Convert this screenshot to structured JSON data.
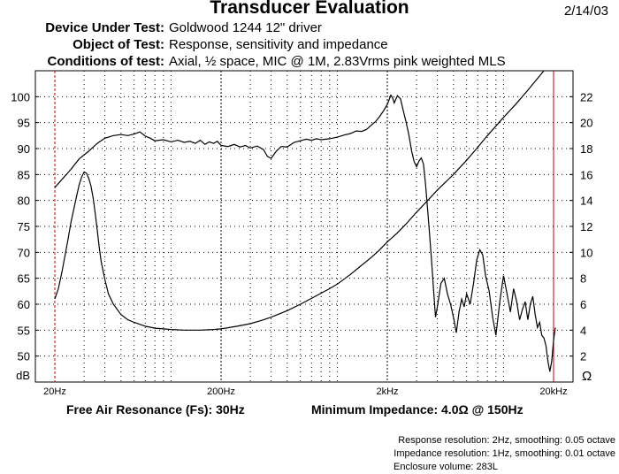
{
  "header": {
    "title": "Transducer Evaluation",
    "date": "2/14/03",
    "rows": [
      {
        "label": "Device Under Test:",
        "value": "Goldwood 1244 12\" driver"
      },
      {
        "label": "Object of Test:",
        "value": "Response, sensitivity and impedance"
      },
      {
        "label": "Conditions of test:",
        "value": "Axial, ½ space, MIC @ 1M, 2.83Vrms pink weighted MLS"
      }
    ]
  },
  "stats": {
    "fs": "Free Air Resonance (Fs): 30Hz",
    "min_impedance": "Minimum Impedance: 4.0Ω @ 150Hz"
  },
  "notes": {
    "response_resolution": "Response resolution: 2Hz, smoothing: 0.05 octave",
    "impedance_resolution": "Impedance resolution: 1Hz, smoothing: 0.01 octave",
    "enclosure": "Enclosure volume: 283L"
  },
  "chart_data": {
    "type": "line",
    "x_scale": "log",
    "xlim": [
      20,
      22000
    ],
    "x_ticks": [
      {
        "value": 20,
        "label": "20Hz"
      },
      {
        "value": 200,
        "label": "200Hz"
      },
      {
        "value": 2000,
        "label": "2kHz"
      },
      {
        "value": 20000,
        "label": "20kHz"
      }
    ],
    "ylim_left": [
      45,
      105
    ],
    "y_ticks_left": [
      50,
      55,
      60,
      65,
      70,
      75,
      80,
      85,
      90,
      95,
      100
    ],
    "ylabel_left": "dB",
    "ylim_right": [
      0,
      24
    ],
    "y_ticks_right": [
      2,
      4,
      6,
      8,
      10,
      12,
      14,
      16,
      18,
      20,
      22
    ],
    "ylabel_right": "Ω",
    "grid": "dotted",
    "markers_hz": [
      20,
      20000
    ],
    "series": [
      {
        "axis": "left",
        "values": [
          [
            20,
            82.5
          ],
          [
            22,
            84
          ],
          [
            25,
            86
          ],
          [
            28,
            88
          ],
          [
            32,
            89.5
          ],
          [
            36,
            91
          ],
          [
            40,
            92
          ],
          [
            45,
            92.5
          ],
          [
            50,
            92.7
          ],
          [
            55,
            92.5
          ],
          [
            60,
            92.8
          ],
          [
            65,
            93.2
          ],
          [
            70,
            92.4
          ],
          [
            75,
            92
          ],
          [
            80,
            91.5
          ],
          [
            90,
            91.7
          ],
          [
            100,
            91.3
          ],
          [
            110,
            91.6
          ],
          [
            120,
            91.2
          ],
          [
            130,
            91.4
          ],
          [
            140,
            91
          ],
          [
            150,
            91.6
          ],
          [
            160,
            90.8
          ],
          [
            170,
            91.3
          ],
          [
            180,
            91
          ],
          [
            190,
            91.4
          ],
          [
            200,
            90.6
          ],
          [
            220,
            90.4
          ],
          [
            240,
            90.8
          ],
          [
            260,
            90.3
          ],
          [
            280,
            90.6
          ],
          [
            300,
            90.1
          ],
          [
            330,
            90.5
          ],
          [
            360,
            89.8
          ],
          [
            380,
            88.5
          ],
          [
            400,
            88.1
          ],
          [
            430,
            89.5
          ],
          [
            460,
            90.4
          ],
          [
            500,
            90.3
          ],
          [
            550,
            91.2
          ],
          [
            600,
            91.5
          ],
          [
            650,
            91.8
          ],
          [
            700,
            91.6
          ],
          [
            750,
            91.9
          ],
          [
            800,
            91.7
          ],
          [
            900,
            91.9
          ],
          [
            1000,
            92.2
          ],
          [
            1100,
            92.6
          ],
          [
            1200,
            92.9
          ],
          [
            1300,
            93.4
          ],
          [
            1400,
            93.3
          ],
          [
            1500,
            93.7
          ],
          [
            1600,
            94.5
          ],
          [
            1700,
            95.2
          ],
          [
            1800,
            96.2
          ],
          [
            1900,
            97.3
          ],
          [
            2000,
            98.5
          ],
          [
            2100,
            100.3
          ],
          [
            2150,
            99.8
          ],
          [
            2200,
            98.8
          ],
          [
            2300,
            100.2
          ],
          [
            2400,
            99.6
          ],
          [
            2500,
            97.2
          ],
          [
            2600,
            95
          ],
          [
            2700,
            92.5
          ],
          [
            2800,
            89.5
          ],
          [
            2900,
            87.5
          ],
          [
            3000,
            86.5
          ],
          [
            3100,
            87.6
          ],
          [
            3200,
            88.2
          ],
          [
            3300,
            87
          ],
          [
            3400,
            83
          ],
          [
            3500,
            78
          ],
          [
            3600,
            73
          ],
          [
            3700,
            68
          ],
          [
            3800,
            62.5
          ],
          [
            3900,
            57.5
          ],
          [
            4000,
            59.5
          ],
          [
            4200,
            64
          ],
          [
            4400,
            65
          ],
          [
            4600,
            62
          ],
          [
            4800,
            60
          ],
          [
            5000,
            57.5
          ],
          [
            5200,
            54.5
          ],
          [
            5400,
            58.5
          ],
          [
            5600,
            61
          ],
          [
            5800,
            59.5
          ],
          [
            6000,
            62
          ],
          [
            6300,
            60
          ],
          [
            6600,
            64
          ],
          [
            6900,
            68.5
          ],
          [
            7200,
            70.5
          ],
          [
            7500,
            69.5
          ],
          [
            7800,
            65.5
          ],
          [
            8200,
            62.5
          ],
          [
            8600,
            57.5
          ],
          [
            9000,
            54
          ],
          [
            9500,
            60.5
          ],
          [
            10000,
            65.5
          ],
          [
            10500,
            62
          ],
          [
            11000,
            58.5
          ],
          [
            11500,
            63
          ],
          [
            12000,
            60.5
          ],
          [
            12500,
            57
          ],
          [
            13000,
            59
          ],
          [
            13500,
            60.5
          ],
          [
            14000,
            57
          ],
          [
            14500,
            60
          ],
          [
            15000,
            61.5
          ],
          [
            15500,
            58
          ],
          [
            16000,
            55.5
          ],
          [
            16500,
            56.5
          ],
          [
            17000,
            54
          ],
          [
            17500,
            53.5
          ],
          [
            18000,
            52
          ],
          [
            18500,
            49
          ],
          [
            19000,
            47
          ],
          [
            19500,
            49
          ],
          [
            20000,
            53
          ],
          [
            20500,
            55.5
          ]
        ]
      },
      {
        "axis": "right",
        "values": [
          [
            20,
            6.4
          ],
          [
            21,
            7.2
          ],
          [
            22,
            8.4
          ],
          [
            23,
            9.7
          ],
          [
            24,
            11
          ],
          [
            25,
            12.3
          ],
          [
            26,
            13.3
          ],
          [
            27,
            14.3
          ],
          [
            28,
            15.2
          ],
          [
            29,
            15.8
          ],
          [
            30,
            16.2
          ],
          [
            31,
            16.1
          ],
          [
            32,
            15.7
          ],
          [
            33,
            15.1
          ],
          [
            34,
            14.2
          ],
          [
            35,
            13
          ],
          [
            36,
            11.7
          ],
          [
            37,
            10.4
          ],
          [
            38,
            9.3
          ],
          [
            40,
            7.9
          ],
          [
            42,
            6.8
          ],
          [
            45,
            6
          ],
          [
            50,
            5.2
          ],
          [
            55,
            4.8
          ],
          [
            60,
            4.6
          ],
          [
            70,
            4.3
          ],
          [
            80,
            4.15
          ],
          [
            90,
            4.1
          ],
          [
            100,
            4.05
          ],
          [
            120,
            4.0
          ],
          [
            150,
            4.0
          ],
          [
            180,
            4.05
          ],
          [
            200,
            4.1
          ],
          [
            250,
            4.3
          ],
          [
            300,
            4.5
          ],
          [
            350,
            4.75
          ],
          [
            400,
            5.0
          ],
          [
            500,
            5.5
          ],
          [
            600,
            6.0
          ],
          [
            700,
            6.45
          ],
          [
            800,
            6.85
          ],
          [
            900,
            7.2
          ],
          [
            1000,
            7.55
          ],
          [
            1200,
            8.3
          ],
          [
            1400,
            9.0
          ],
          [
            1600,
            9.6
          ],
          [
            1800,
            10.2
          ],
          [
            2000,
            10.8
          ],
          [
            2300,
            11.5
          ],
          [
            2600,
            12.2
          ],
          [
            3000,
            13.1
          ],
          [
            3500,
            14.0
          ],
          [
            4000,
            14.8
          ],
          [
            5000,
            16.0
          ],
          [
            6000,
            17.1
          ],
          [
            7000,
            18.1
          ],
          [
            8000,
            19.0
          ],
          [
            10000,
            20.4
          ],
          [
            12000,
            21.5
          ],
          [
            14000,
            22.5
          ],
          [
            16000,
            23.4
          ],
          [
            17500,
            24.0
          ]
        ]
      }
    ]
  }
}
